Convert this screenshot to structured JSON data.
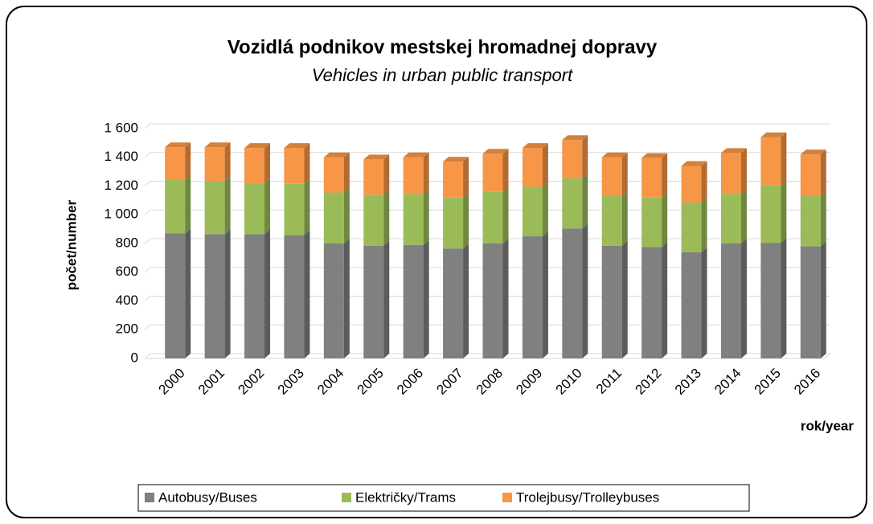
{
  "chart_data": {
    "type": "stacked-bar-3d",
    "title": "Vozidlá podnikov mestskej hromadnej dopravy",
    "subtitle": "Vehicles in urban public transport",
    "y_label": "počet/number",
    "x_label": "rok/year",
    "categories": [
      "2000",
      "2001",
      "2002",
      "2003",
      "2004",
      "2005",
      "2006",
      "2007",
      "2008",
      "2009",
      "2010",
      "2011",
      "2012",
      "2013",
      "2014",
      "2015",
      "2016"
    ],
    "series": [
      {
        "name": "Autobusy/Buses",
        "color": "#808080",
        "values": [
          870,
          865,
          865,
          860,
          800,
          785,
          790,
          765,
          800,
          850,
          905,
          785,
          775,
          740,
          800,
          805,
          780
        ]
      },
      {
        "name": "Električky/Trams",
        "color": "#9bbb59",
        "values": [
          375,
          370,
          355,
          355,
          355,
          355,
          355,
          355,
          360,
          345,
          350,
          345,
          345,
          345,
          345,
          400,
          350
        ]
      },
      {
        "name": "Trolejbusy/Trolleybuses",
        "color": "#f79646",
        "values": [
          225,
          235,
          245,
          250,
          245,
          245,
          255,
          250,
          265,
          270,
          265,
          270,
          275,
          255,
          285,
          335,
          290
        ]
      }
    ],
    "ylim": [
      0,
      1600
    ],
    "yticks": [
      0,
      200,
      400,
      600,
      800,
      {
        "value": 1000,
        "label": "1 000"
      },
      {
        "value": 1200,
        "label": "1 200"
      },
      {
        "value": 1400,
        "label": "1 400"
      },
      {
        "value": 1600,
        "label": "1 600"
      }
    ],
    "grid": true,
    "legend": "bottom"
  }
}
